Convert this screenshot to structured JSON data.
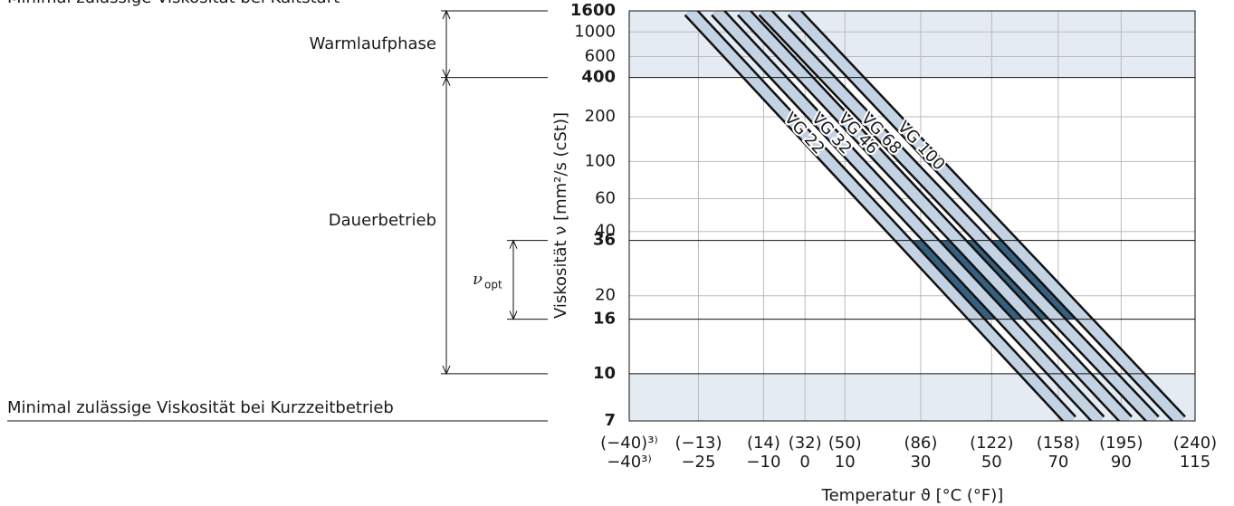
{
  "chart_data": {
    "type": "line",
    "xlabel": "Temperatur ϑ [°C (°F)]",
    "ylabel": "Viskosität ν [mm²/s (cSt)]",
    "xscale": "log-absolute",
    "yscale": "walther",
    "xlim": [
      -40,
      115
    ],
    "ylim": [
      7,
      1600
    ],
    "xticks": [
      {
        "value": -40,
        "label": "−40³⁾",
        "fahrenheit": "(−40)³⁾"
      },
      {
        "value": -25,
        "label": "−25",
        "fahrenheit": "(−13)"
      },
      {
        "value": -10,
        "label": "−10",
        "fahrenheit": "(14)"
      },
      {
        "value": 0,
        "label": "0",
        "fahrenheit": "(32)"
      },
      {
        "value": 10,
        "label": "10",
        "fahrenheit": "(50)"
      },
      {
        "value": 30,
        "label": "30",
        "fahrenheit": "(86)"
      },
      {
        "value": 50,
        "label": "50",
        "fahrenheit": "(122)"
      },
      {
        "value": 70,
        "label": "70",
        "fahrenheit": "(158)"
      },
      {
        "value": 90,
        "label": "90",
        "fahrenheit": "(195)"
      },
      {
        "value": 115,
        "label": "115",
        "fahrenheit": "(240)"
      }
    ],
    "yticks": [
      1600,
      1000,
      600,
      400,
      200,
      100,
      60,
      40,
      36,
      20,
      16,
      10,
      7
    ],
    "ytick_bold": [
      true,
      false,
      false,
      true,
      false,
      false,
      false,
      false,
      true,
      false,
      true,
      true,
      true
    ],
    "grid": true,
    "shaded_ranges": [
      [
        400,
        1600
      ],
      [
        7,
        10
      ]
    ],
    "shaded_color": "#e4ebf2",
    "optimal_range": [
      16,
      36
    ],
    "optimal_color": "#36607f",
    "series": [
      {
        "name": "VG 22",
        "color": "#c3d3e3",
        "x": [
          -27,
          74
        ],
        "values": [
          1600,
          7
        ]
      },
      {
        "name": "VG 32",
        "color": "#c3d3e3",
        "x": [
          -21,
          83
        ],
        "values": [
          1600,
          7
        ]
      },
      {
        "name": "VG 46",
        "color": "#c3d3e3",
        "x": [
          -15,
          92
        ],
        "values": [
          1600,
          7
        ]
      },
      {
        "name": "VG 68",
        "color": "#c3d3e3",
        "x": [
          -10,
          101
        ],
        "values": [
          1600,
          7
        ]
      },
      {
        "name": "VG 100",
        "color": "#c3d3e3",
        "x": [
          -3,
          110
        ],
        "values": [
          1600,
          7
        ]
      }
    ],
    "annotations": {
      "cold_start": "Minimal zulässige Viskosität bei Kaltstart",
      "warmup": "Warmlaufphase",
      "continuous": "Dauerbetrieb",
      "optimum": "ν",
      "optimum_sub": "opt",
      "short_term": "Minimal zulässige Viskosität bei Kurzzeitbetrieb"
    }
  }
}
